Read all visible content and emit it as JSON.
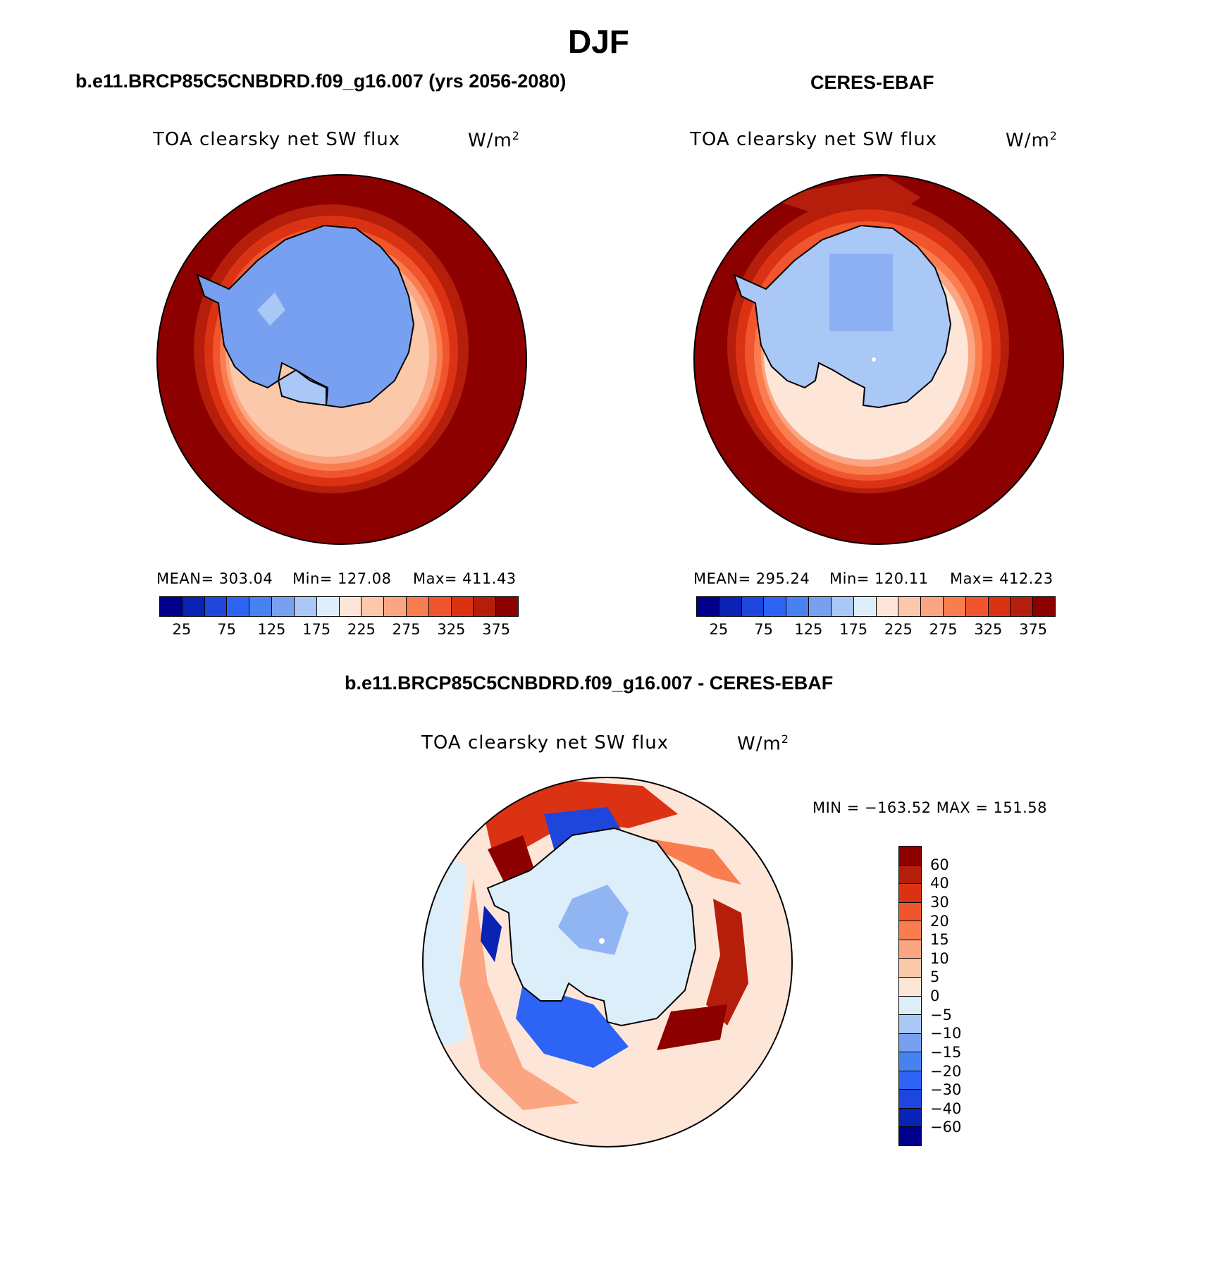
{
  "season": "DJF",
  "panels": {
    "model": {
      "header": "b.e11.BRCP85C5CNBDRD.f09_g16.007 (yrs 2056-2080)",
      "variable": "TOA clearsky net SW flux",
      "units": "W/m",
      "units_sup": "2",
      "stats": {
        "mean": "MEAN= 303.04",
        "min": "Min= 127.08",
        "max": "Max= 411.43"
      }
    },
    "obs": {
      "header": "CERES-EBAF",
      "variable": "TOA clearsky net SW flux",
      "units": "W/m",
      "units_sup": "2",
      "stats": {
        "mean": "MEAN= 295.24",
        "min": "Min= 120.11",
        "max": "Max= 412.23"
      }
    },
    "diff": {
      "header": "b.e11.BRCP85C5CNBDRD.f09_g16.007 - CERES-EBAF",
      "variable": "TOA clearsky net SW flux",
      "units": "W/m",
      "units_sup": "2",
      "minmax": "MIN = −163.52 MAX = 151.58"
    }
  },
  "abs_colorbar": {
    "colors": [
      "#00008c",
      "#0a23b4",
      "#1e46dc",
      "#2d64f5",
      "#4682f0",
      "#78a0f0",
      "#aac8f5",
      "#dceefa",
      "#fde6d7",
      "#fcc8aa",
      "#fca582",
      "#fa7d50",
      "#f0552d",
      "#dc3214",
      "#b41e0a",
      "#8c0000"
    ],
    "ticks": [
      "25",
      "75",
      "125",
      "175",
      "225",
      "275",
      "325",
      "375"
    ]
  },
  "diff_colorbar": {
    "colors": [
      "#8c0000",
      "#b41e0a",
      "#dc3214",
      "#f0552d",
      "#fa7d50",
      "#fca582",
      "#fcc8aa",
      "#fde6d7",
      "#dceefa",
      "#aac8f5",
      "#78a0f0",
      "#4682f0",
      "#2d64f5",
      "#1e46dc",
      "#0a23b4",
      "#00008c"
    ],
    "ticks": [
      "60",
      "40",
      "30",
      "20",
      "15",
      "10",
      "5",
      "0",
      "−5",
      "−10",
      "−15",
      "−20",
      "−30",
      "−40",
      "−60"
    ]
  }
}
